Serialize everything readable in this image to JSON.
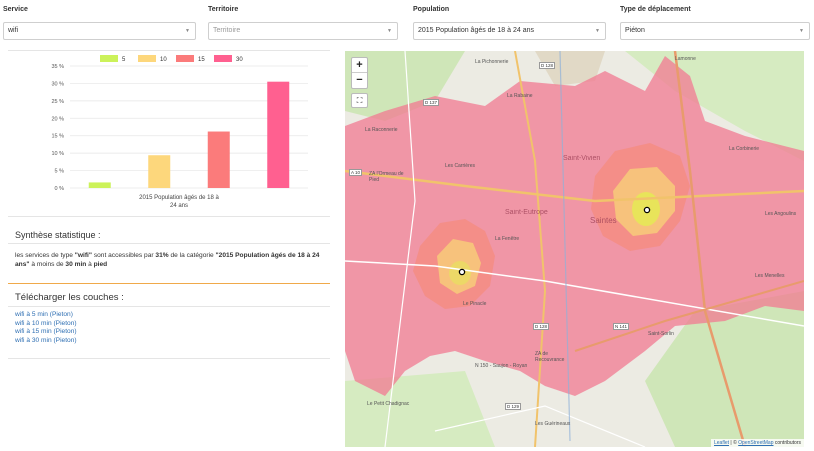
{
  "filters": [
    {
      "label": "Service",
      "value": "wifi",
      "placeholder": false
    },
    {
      "label": "Territoire",
      "value": "Territoire",
      "placeholder": true
    },
    {
      "label": "Population",
      "value": "2015 Population âgés de 18 à 24 ans",
      "placeholder": false
    },
    {
      "label": "Type de déplacement",
      "value": "Piéton",
      "placeholder": false
    }
  ],
  "chart_data": {
    "type": "bar",
    "categories": [
      "5",
      "10",
      "15",
      "30"
    ],
    "series": [
      {
        "name": "5",
        "value": 1.6,
        "color": "#ccf25a"
      },
      {
        "name": "10",
        "value": 9.4,
        "color": "#fdd77c"
      },
      {
        "name": "15",
        "value": 16.2,
        "color": "#fb7b7b"
      },
      {
        "name": "30",
        "value": 30.5,
        "color": "#ff6090"
      }
    ],
    "xlabel_line1": "2015 Population âgés de 18 à",
    "xlabel_line2": "24 ans",
    "ylim": [
      0,
      35
    ],
    "yticks": [
      "0 %",
      "5 %",
      "10 %",
      "15 %",
      "20 %",
      "25 %",
      "30 %",
      "35 %"
    ],
    "legend_position": "top"
  },
  "stats": {
    "title": "Synthèse statistique :",
    "t1": "les services de type ",
    "service": "\"wifi\"",
    "t2": " sont accessibles par ",
    "percent": "31%",
    "t3": " de la catégorie ",
    "category": "\"2015 Population âgés de 18 à 24 ans\"",
    "t4": " à moins de ",
    "time": "30 min",
    "t5": " à ",
    "mode": "pied"
  },
  "download": {
    "title": "Télécharger les couches :",
    "links": [
      "wifi à 5 min (Pieton)",
      "wifi à 10 min (Pieton)",
      "wifi à 15 min (Pieton)",
      "wifi à 30 min (Pieton)"
    ]
  },
  "map": {
    "zoom_in": "+",
    "zoom_out": "−",
    "fullscreen": "⛶",
    "attrib_leaflet": "Leaflet",
    "attrib_sep": " | © ",
    "attrib_osm": "OpenStreetMap",
    "attrib_rest": " contributors",
    "labels": {
      "pichonnerie": "La Pichonnerie",
      "d128a": "D 128",
      "lamonne": "Lamonne",
      "d137": "D 137",
      "rabaine": "La Rabaine",
      "raconnerie": "La Raconnerie",
      "corbinerie": "La Corbinerie",
      "saint_vivien": "Saint-Vivien",
      "carrieres": "Les Carrières",
      "saintes": "Saintes",
      "saint_eutrope": "Saint-Eutrope",
      "fenetre": "La Fenêtre",
      "a10": "A 10",
      "za_ormeau": "ZA l'Ormeau de Pied",
      "pinacle": "Le Pinacle",
      "n141": "N 141",
      "d128b": "D 128",
      "saint_sorlin": "Saint-Sorlin",
      "petit_chadignac": "Le Petit Chadignac",
      "d129": "D 129",
      "gueneau": "Les Guérineaux",
      "menelles": "Les Menelles",
      "za_recouvrance": "ZA de Recouvrance",
      "n150": "N 150 - Saujon - Royan",
      "angoulins": "Les Angoulins"
    }
  }
}
